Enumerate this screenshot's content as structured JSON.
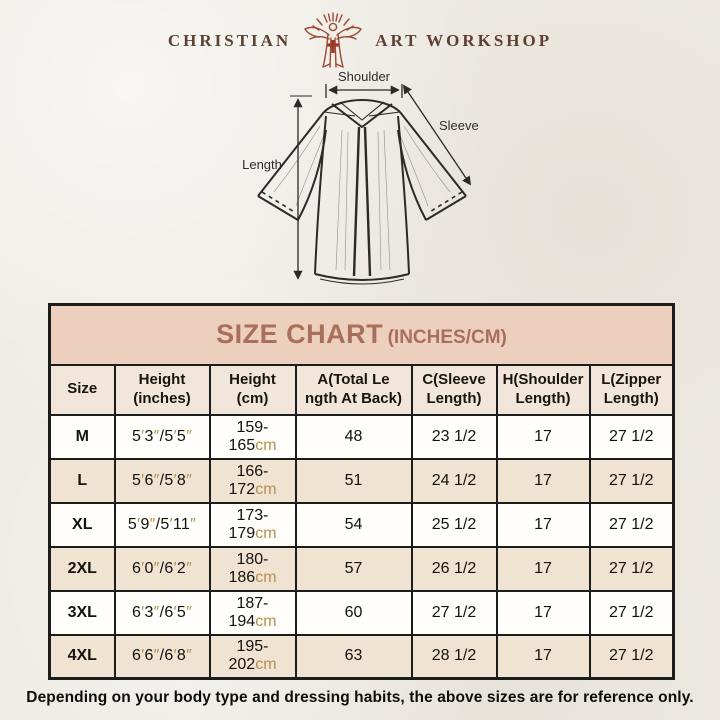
{
  "logo": {
    "word_left": "CHRISTIAN",
    "word_right": "ART WORKSHOP",
    "emblem_color": "#9c4a32",
    "cross_color": "#9c3a28"
  },
  "diagram": {
    "labels": {
      "shoulder": "Shoulder",
      "sleeve": "Sleeve",
      "length": "Length"
    }
  },
  "size_chart": {
    "title": "SIZE CHART",
    "title_suffix": "(INCHES/CM)",
    "band_color": "#ecd0bd",
    "title_color": "#a96f5d",
    "unit_color": "#b29152",
    "columns": [
      {
        "lines": [
          "Size"
        ]
      },
      {
        "lines": [
          "Height",
          "(inches)"
        ]
      },
      {
        "lines": [
          "Height",
          "(cm)"
        ]
      },
      {
        "lines": [
          "A(Total Le",
          "ngth At Back)"
        ]
      },
      {
        "lines": [
          "C(Sleeve",
          "Length)"
        ]
      },
      {
        "lines": [
          "H(Shoulder",
          "Length)"
        ]
      },
      {
        "lines": [
          "L(Zipper",
          "Length)"
        ]
      }
    ],
    "rows": [
      {
        "size": "M",
        "height_in": "5′3″/5′5″",
        "height_cm": "159-165cm",
        "total_length": "48",
        "sleeve_length": "23 1/2",
        "shoulder_length": "17",
        "zipper_length": "27 1/2"
      },
      {
        "size": "L",
        "height_in": "5′6″/5′8″",
        "height_cm": "166-172cm",
        "total_length": "51",
        "sleeve_length": "24 1/2",
        "shoulder_length": "17",
        "zipper_length": "27 1/2"
      },
      {
        "size": "XL",
        "height_in": "5′9″/5′11″",
        "height_cm": "173-179cm",
        "total_length": "54",
        "sleeve_length": "25 1/2",
        "shoulder_length": "17",
        "zipper_length": "27 1/2"
      },
      {
        "size": "2XL",
        "height_in": "6′0″/6′2″",
        "height_cm": "180-186cm",
        "total_length": "57",
        "sleeve_length": "26 1/2",
        "shoulder_length": "17",
        "zipper_length": "27 1/2"
      },
      {
        "size": "3XL",
        "height_in": "6′3″/6′5″",
        "height_cm": "187-194cm",
        "total_length": "60",
        "sleeve_length": "27 1/2",
        "shoulder_length": "17",
        "zipper_length": "27 1/2"
      },
      {
        "size": "4XL",
        "height_in": "6′6″/6′8″",
        "height_cm": "195-202cm",
        "total_length": "63",
        "sleeve_length": "28 1/2",
        "shoulder_length": "17",
        "zipper_length": "27 1/2"
      }
    ]
  },
  "footer_note": "Depending on your body type and dressing habits, the above sizes are for reference only."
}
